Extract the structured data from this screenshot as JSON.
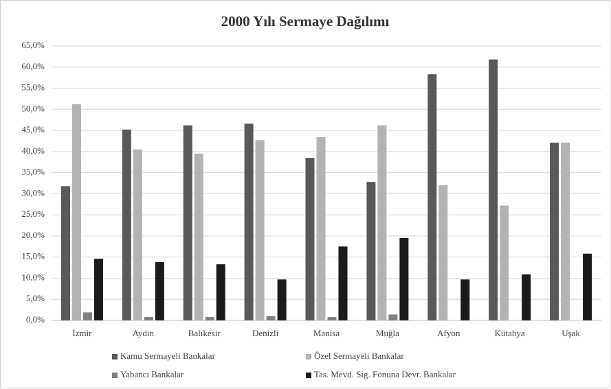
{
  "chart_data": {
    "type": "bar",
    "title": "2000 Yılı Sermaye Dağılımı",
    "categories": [
      "İzmir",
      "Aydın",
      "Balıkesir",
      "Denizli",
      "Manisa",
      "Muğla",
      "Afyon",
      "Kütahya",
      "Uşak"
    ],
    "series": [
      {
        "name": "Kamu Sermayeli Bankalar",
        "color": "#595959",
        "values": [
          31.8,
          45.2,
          46.2,
          46.6,
          38.5,
          32.8,
          58.3,
          61.8,
          42.1
        ]
      },
      {
        "name": "Özel Sermayeli Bankalar",
        "color": "#b3b3b3",
        "values": [
          51.2,
          40.5,
          39.5,
          42.7,
          43.4,
          46.2,
          32.0,
          27.2,
          42.1
        ]
      },
      {
        "name": "Yabancı Bankalar",
        "color": "#808080",
        "values": [
          1.9,
          0.8,
          0.8,
          1.0,
          0.8,
          1.4,
          0,
          0,
          0
        ]
      },
      {
        "name": "Tas. Mevd. Sig. Fonuna Devr. Bankalar",
        "color": "#1a1a1a",
        "values": [
          14.6,
          13.8,
          13.3,
          9.7,
          17.5,
          19.5,
          9.7,
          10.9,
          15.8
        ]
      }
    ],
    "ylim": [
      0,
      65
    ],
    "yticks": [
      {
        "value": 0,
        "label": "0,0%"
      },
      {
        "value": 5,
        "label": "5,0%"
      },
      {
        "value": 10,
        "label": "10,0%"
      },
      {
        "value": 15,
        "label": "15,0%"
      },
      {
        "value": 20,
        "label": "20,0%"
      },
      {
        "value": 25,
        "label": "25,0%"
      },
      {
        "value": 30,
        "label": "30,0%"
      },
      {
        "value": 35,
        "label": "35,0%"
      },
      {
        "value": 40,
        "label": "40,0%"
      },
      {
        "value": 45,
        "label": "45,0%"
      },
      {
        "value": 50,
        "label": "50,0%"
      },
      {
        "value": 55,
        "label": "55,0%"
      },
      {
        "value": 60,
        "label": "60,0%"
      },
      {
        "value": 65,
        "label": "65,0%"
      }
    ],
    "grid": true,
    "legend": "bottom"
  }
}
